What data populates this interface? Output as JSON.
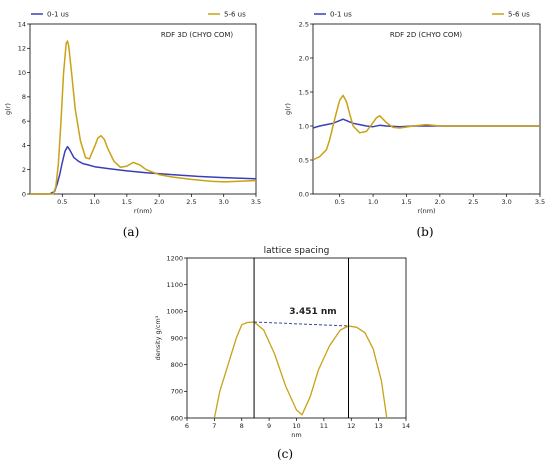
{
  "chart_data": [
    {
      "type": "line",
      "panel_label": "(a)",
      "annotation": "RDF 3D (CHYO COM)",
      "xlabel": "r(nm)",
      "ylabel": "g(r)",
      "xlim": [
        0.0,
        3.5
      ],
      "ylim": [
        0,
        14
      ],
      "xticks": [
        "0.5",
        "1.0",
        "1.5",
        "2.0",
        "2.5",
        "3.0",
        "3.5"
      ],
      "yticks": [
        "0",
        "2",
        "4",
        "6",
        "8",
        "10",
        "12",
        "14"
      ],
      "legend": "top",
      "series": [
        {
          "name": "0-1 us",
          "color": "#3a3fb5",
          "x": [
            0.0,
            0.3,
            0.38,
            0.42,
            0.46,
            0.5,
            0.54,
            0.58,
            0.62,
            0.68,
            0.75,
            0.82,
            0.9,
            1.0,
            1.2,
            1.5,
            1.8,
            2.2,
            2.6,
            3.0,
            3.5
          ],
          "y": [
            0.0,
            0.0,
            0.2,
            0.8,
            1.6,
            2.6,
            3.5,
            3.9,
            3.6,
            3.0,
            2.7,
            2.5,
            2.4,
            2.25,
            2.1,
            1.9,
            1.75,
            1.6,
            1.45,
            1.35,
            1.25
          ]
        },
        {
          "name": "5-6 us",
          "color": "#c9a216",
          "x": [
            0.0,
            0.36,
            0.4,
            0.44,
            0.48,
            0.52,
            0.56,
            0.58,
            0.6,
            0.64,
            0.7,
            0.78,
            0.86,
            0.92,
            1.0,
            1.05,
            1.1,
            1.15,
            1.2,
            1.3,
            1.4,
            1.5,
            1.6,
            1.7,
            1.8,
            2.0,
            2.2,
            2.5,
            2.8,
            3.0,
            3.5
          ],
          "y": [
            0.0,
            0.0,
            0.6,
            2.5,
            6.0,
            10.0,
            12.4,
            12.6,
            12.2,
            10.2,
            7.0,
            4.4,
            3.0,
            2.9,
            3.9,
            4.6,
            4.8,
            4.5,
            3.8,
            2.7,
            2.2,
            2.3,
            2.6,
            2.4,
            2.0,
            1.6,
            1.4,
            1.2,
            1.05,
            1.0,
            1.1
          ]
        }
      ]
    },
    {
      "type": "line",
      "panel_label": "(b)",
      "annotation": "RDF 2D (CHYO COM)",
      "xlabel": "r(nm)",
      "ylabel": "g(r)",
      "xlim": [
        0.1,
        3.5
      ],
      "ylim": [
        0.0,
        2.5
      ],
      "xticks": [
        "0.5",
        "1.0",
        "1.5",
        "2.0",
        "2.5",
        "3.0",
        "3.5"
      ],
      "yticks": [
        "0.0",
        "0.5",
        "1.0",
        "1.5",
        "2.0",
        "2.5"
      ],
      "legend": "top",
      "series": [
        {
          "name": "0-1 us",
          "color": "#3a3fb5",
          "x": [
            0.1,
            0.2,
            0.3,
            0.4,
            0.5,
            0.55,
            0.6,
            0.7,
            0.8,
            0.9,
            1.0,
            1.1,
            1.2,
            1.4,
            1.6,
            2.0,
            2.5,
            3.0,
            3.5
          ],
          "y": [
            0.97,
            1.0,
            1.02,
            1.04,
            1.08,
            1.1,
            1.08,
            1.04,
            1.02,
            1.0,
            0.99,
            1.01,
            1.0,
            0.99,
            1.0,
            1.0,
            1.0,
            1.0,
            1.0
          ]
        },
        {
          "name": "5-6 us",
          "color": "#c9a216",
          "x": [
            0.1,
            0.2,
            0.3,
            0.35,
            0.4,
            0.45,
            0.5,
            0.55,
            0.6,
            0.65,
            0.7,
            0.8,
            0.9,
            1.0,
            1.05,
            1.1,
            1.15,
            1.2,
            1.3,
            1.4,
            1.6,
            1.8,
            2.0,
            2.5,
            3.0,
            3.5
          ],
          "y": [
            0.5,
            0.55,
            0.65,
            0.8,
            1.0,
            1.2,
            1.38,
            1.45,
            1.36,
            1.18,
            1.0,
            0.9,
            0.92,
            1.05,
            1.12,
            1.15,
            1.1,
            1.05,
            0.98,
            0.97,
            1.0,
            1.02,
            1.0,
            1.0,
            1.0,
            1.0
          ]
        }
      ]
    },
    {
      "type": "line",
      "panel_label": "(c)",
      "title": "lattice spacing",
      "xlabel": "nm",
      "ylabel": "density g/cm³",
      "xlim": [
        6,
        14
      ],
      "ylim": [
        600,
        1200
      ],
      "xticks": [
        "6",
        "7",
        "8",
        "9",
        "10",
        "11",
        "12",
        "13",
        "14"
      ],
      "yticks": [
        "600",
        "700",
        "800",
        "900",
        "1000",
        "1100",
        "1200"
      ],
      "annotation": "3.451 nm",
      "vertical_lines_x": [
        8.45,
        11.9
      ],
      "dashed_segment": {
        "x": [
          8.45,
          11.9
        ],
        "y": [
          960,
          945
        ]
      },
      "series": [
        {
          "color": "#c9a216",
          "x": [
            7.0,
            7.2,
            7.5,
            7.8,
            8.0,
            8.2,
            8.45,
            8.8,
            9.2,
            9.6,
            10.0,
            10.2,
            10.5,
            10.8,
            11.2,
            11.6,
            11.9,
            12.2,
            12.5,
            12.8,
            13.1,
            13.3
          ],
          "y": [
            600,
            700,
            800,
            900,
            950,
            958,
            960,
            930,
            840,
            720,
            630,
            612,
            680,
            780,
            870,
            930,
            945,
            940,
            920,
            860,
            740,
            600
          ]
        }
      ]
    }
  ]
}
